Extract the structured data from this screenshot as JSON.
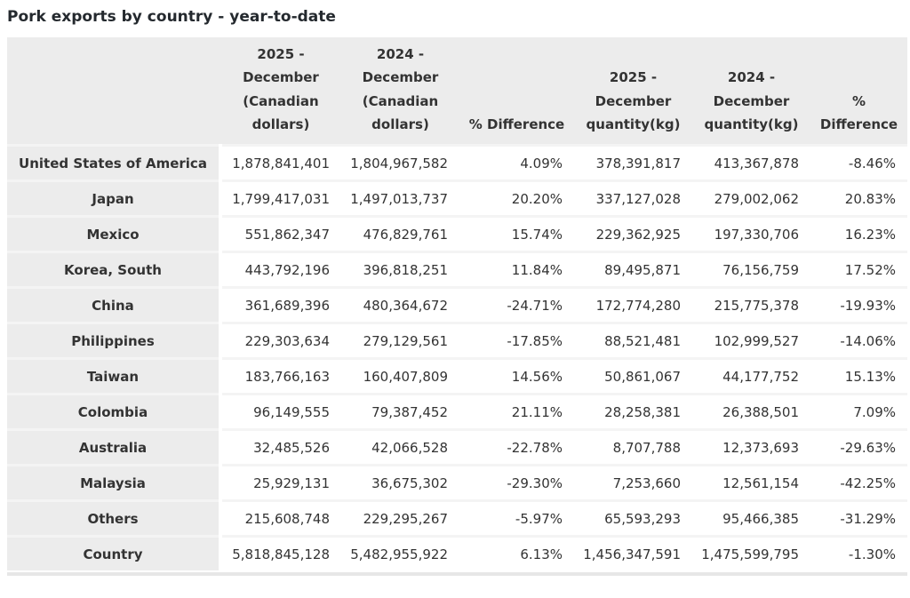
{
  "page": {
    "title": "Pork exports by country - year-to-date"
  },
  "colors": {
    "header_bg": "#ececec",
    "row_divider": "#f4f4f4",
    "text": "#333333",
    "page_bg": "#ffffff"
  },
  "chart_data": {
    "type": "table",
    "title": "Pork exports by country - year-to-date",
    "columns": [
      "",
      "2025 - December (Canadian dollars)",
      "2024 - December (Canadian dollars)",
      "% Difference",
      "2025 - December quantity(kg)",
      "2024 - December quantity(kg)",
      "% Difference"
    ],
    "rows": [
      {
        "country": "United States of America",
        "values": [
          "1,878,841,401",
          "1,804,967,582",
          "4.09%",
          "378,391,817",
          "413,367,878",
          "-8.46%"
        ]
      },
      {
        "country": "Japan",
        "values": [
          "1,799,417,031",
          "1,497,013,737",
          "20.20%",
          "337,127,028",
          "279,002,062",
          "20.83%"
        ]
      },
      {
        "country": "Mexico",
        "values": [
          "551,862,347",
          "476,829,761",
          "15.74%",
          "229,362,925",
          "197,330,706",
          "16.23%"
        ]
      },
      {
        "country": "Korea, South",
        "values": [
          "443,792,196",
          "396,818,251",
          "11.84%",
          "89,495,871",
          "76,156,759",
          "17.52%"
        ]
      },
      {
        "country": "China",
        "values": [
          "361,689,396",
          "480,364,672",
          "-24.71%",
          "172,774,280",
          "215,775,378",
          "-19.93%"
        ]
      },
      {
        "country": "Philippines",
        "values": [
          "229,303,634",
          "279,129,561",
          "-17.85%",
          "88,521,481",
          "102,999,527",
          "-14.06%"
        ]
      },
      {
        "country": "Taiwan",
        "values": [
          "183,766,163",
          "160,407,809",
          "14.56%",
          "50,861,067",
          "44,177,752",
          "15.13%"
        ]
      },
      {
        "country": "Colombia",
        "values": [
          "96,149,555",
          "79,387,452",
          "21.11%",
          "28,258,381",
          "26,388,501",
          "7.09%"
        ]
      },
      {
        "country": "Australia",
        "values": [
          "32,485,526",
          "42,066,528",
          "-22.78%",
          "8,707,788",
          "12,373,693",
          "-29.63%"
        ]
      },
      {
        "country": "Malaysia",
        "values": [
          "25,929,131",
          "36,675,302",
          "-29.30%",
          "7,253,660",
          "12,561,154",
          "-42.25%"
        ]
      },
      {
        "country": "Others",
        "values": [
          "215,608,748",
          "229,295,267",
          "-5.97%",
          "65,593,293",
          "95,466,385",
          "-31.29%"
        ]
      },
      {
        "country": "Country",
        "values": [
          "5,818,845,128",
          "5,482,955,922",
          "6.13%",
          "1,456,347,591",
          "1,475,599,795",
          "-1.30%"
        ]
      }
    ]
  }
}
